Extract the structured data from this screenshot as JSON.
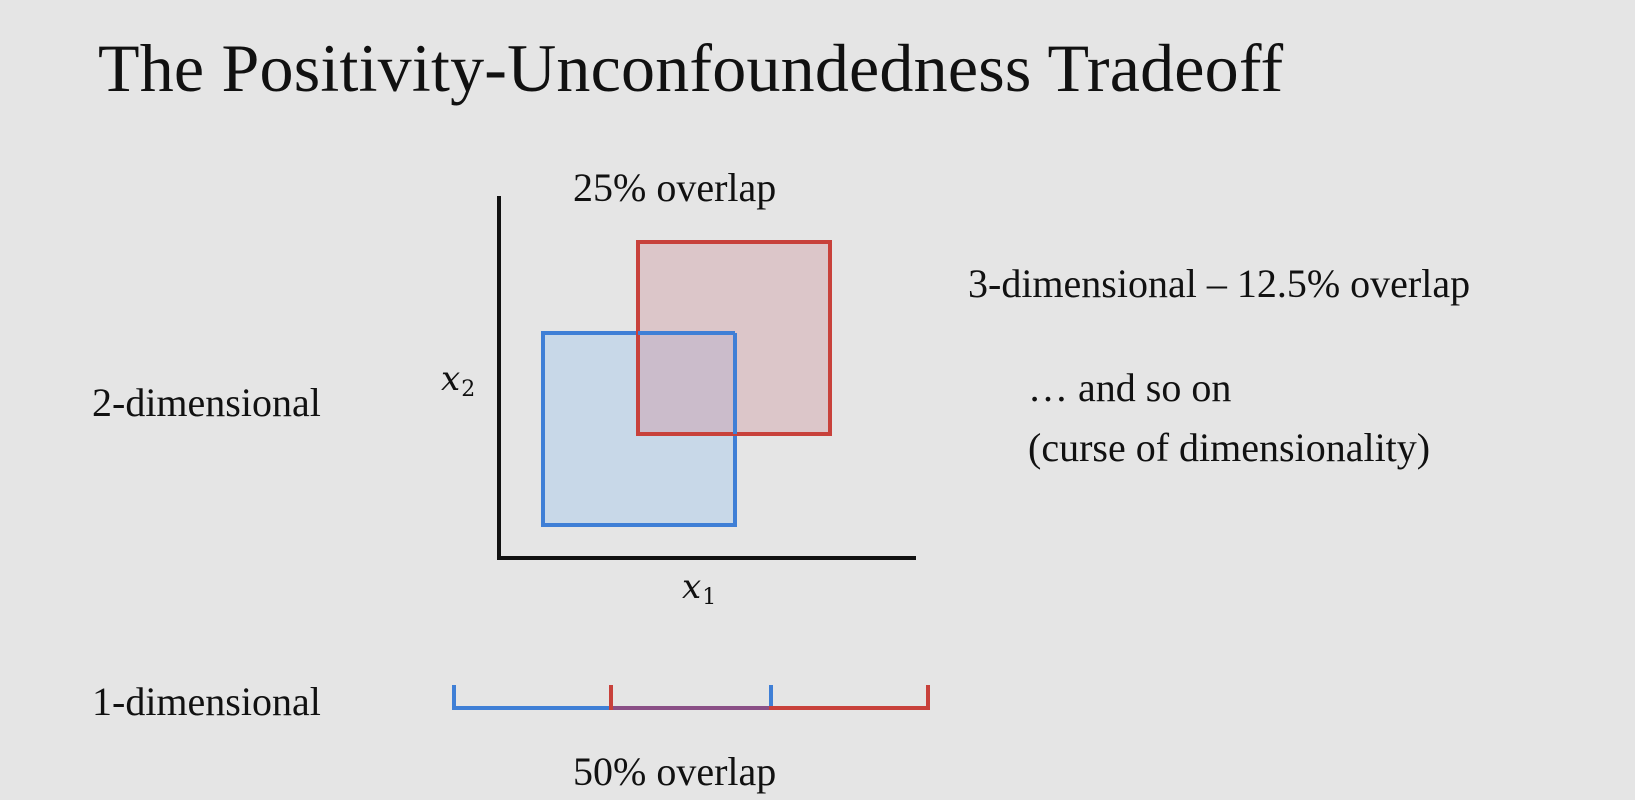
{
  "slide": {
    "title": "The Positivity-Unconfoundedness Tradeoff",
    "background": "#e5e5e5"
  },
  "diagram_2d": {
    "row_label": "2-dimensional",
    "overlap_label": "25% overlap",
    "x_axis_label": "x",
    "x_axis_subscript": "1",
    "y_axis_label": "x",
    "y_axis_subscript": "2",
    "blue_color": "#3f7fd6",
    "blue_fill": "#c8d8e8",
    "red_color": "#c8413b",
    "red_fill": "#dcc6c9",
    "overlap_fill": "#cbbccb"
  },
  "diagram_1d": {
    "row_label": "1-dimensional",
    "overlap_label": "50% overlap",
    "blue_color": "#3f7fd6",
    "red_color": "#c8413b"
  },
  "notes": {
    "three_d": "3-dimensional – 12.5% overlap",
    "and_so_on": "… and so on",
    "curse": "(curse of dimensionality)"
  }
}
